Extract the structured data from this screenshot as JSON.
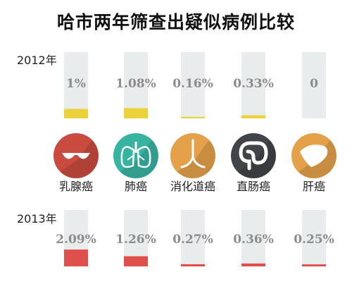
{
  "chart_data": {
    "type": "bar",
    "title": "哈市两年筛查出疑似病例比较",
    "categories": [
      "乳腺癌",
      "肺癌",
      "消化道癌",
      "直肠癌",
      "肝癌"
    ],
    "category_icons": [
      "breast-icon",
      "lungs-icon",
      "digestive-tract-icon",
      "intestine-icon",
      "liver-icon"
    ],
    "icon_colors": [
      "#c94a3f",
      "#37b3a2",
      "#e4a14a",
      "#414448",
      "#e4a14a"
    ],
    "series": [
      {
        "name": "2012年",
        "values": [
          1.0,
          1.08,
          0.16,
          0.33,
          0
        ],
        "labels": [
          "1%",
          "1.08%",
          "0.16%",
          "0.33%",
          "0"
        ],
        "bar_color": "#ecd23a",
        "label_color": "#8c8c8c"
      },
      {
        "name": "2013年",
        "values": [
          2.09,
          1.26,
          0.27,
          0.36,
          0.25
        ],
        "labels": [
          "2.09%",
          "1.26%",
          "0.27%",
          "0.36%",
          "0.25%"
        ],
        "bar_color": "#df4f4c",
        "label_color": "#8c8c8c"
      }
    ],
    "ylim": [
      0,
      7
    ],
    "track_color": "#e8ecec"
  }
}
